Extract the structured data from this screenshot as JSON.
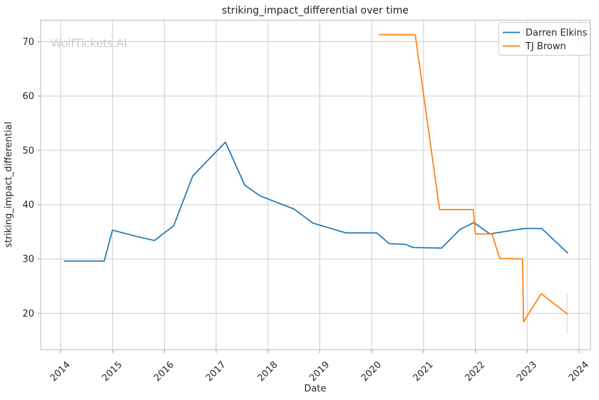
{
  "watermark": "WolfTickets.AI",
  "chart_data": {
    "type": "line",
    "title": "striking_impact_differential over time",
    "xlabel": "Date",
    "ylabel": "striking_impact_differential",
    "x_ticks": [
      2014,
      2015,
      2016,
      2017,
      2018,
      2019,
      2020,
      2021,
      2022,
      2023,
      2024
    ],
    "y_ticks": [
      20,
      30,
      40,
      50,
      60,
      70
    ],
    "xlim": [
      2013.615,
      2024.22
    ],
    "ylim": [
      13.28,
      73.97
    ],
    "grid": true,
    "legend_position": "upper right",
    "series": [
      {
        "name": "Darren Elkins",
        "color": "#1f77b4",
        "points": [
          [
            2014.07,
            29.6
          ],
          [
            2014.84,
            29.6
          ],
          [
            2015.0,
            35.3
          ],
          [
            2015.44,
            34.2
          ],
          [
            2015.81,
            33.4
          ],
          [
            2016.18,
            36.1
          ],
          [
            2016.55,
            45.3
          ],
          [
            2017.18,
            51.5
          ],
          [
            2017.55,
            43.6
          ],
          [
            2017.85,
            41.6
          ],
          [
            2018.5,
            39.2
          ],
          [
            2018.87,
            36.6
          ],
          [
            2019.5,
            34.8
          ],
          [
            2020.1,
            34.8
          ],
          [
            2020.34,
            32.8
          ],
          [
            2020.65,
            32.7
          ],
          [
            2020.8,
            32.1
          ],
          [
            2021.35,
            32.0
          ],
          [
            2021.7,
            35.4
          ],
          [
            2021.97,
            36.7
          ],
          [
            2022.28,
            34.6
          ],
          [
            2022.6,
            35.1
          ],
          [
            2022.94,
            35.6
          ],
          [
            2023.28,
            35.6
          ],
          [
            2023.78,
            31.1
          ]
        ]
      },
      {
        "name": "TJ Brown",
        "color": "#ff7f0e",
        "points": [
          [
            2020.15,
            71.3
          ],
          [
            2020.84,
            71.3
          ],
          [
            2021.31,
            39.1
          ],
          [
            2021.96,
            39.1
          ],
          [
            2022.0,
            34.6
          ],
          [
            2022.32,
            34.6
          ],
          [
            2022.47,
            30.1
          ],
          [
            2022.91,
            30.0
          ],
          [
            2022.93,
            18.4
          ],
          [
            2023.27,
            23.6
          ],
          [
            2023.77,
            19.9
          ]
        ],
        "end_bar": {
          "x": 2023.77,
          "y_low": 16.2,
          "y_high": 23.6
        }
      }
    ]
  }
}
